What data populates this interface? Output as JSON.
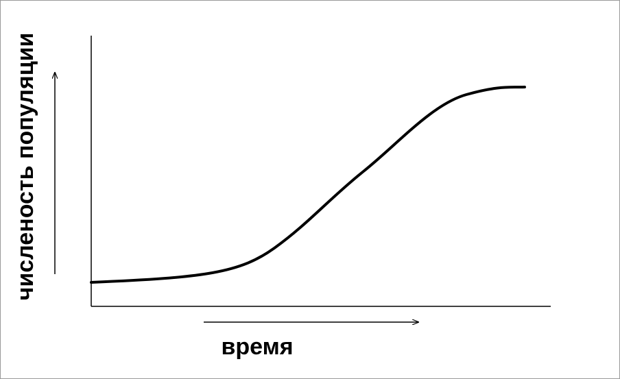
{
  "y_axis_label": "численость популяции",
  "x_axis_label": "время"
}
